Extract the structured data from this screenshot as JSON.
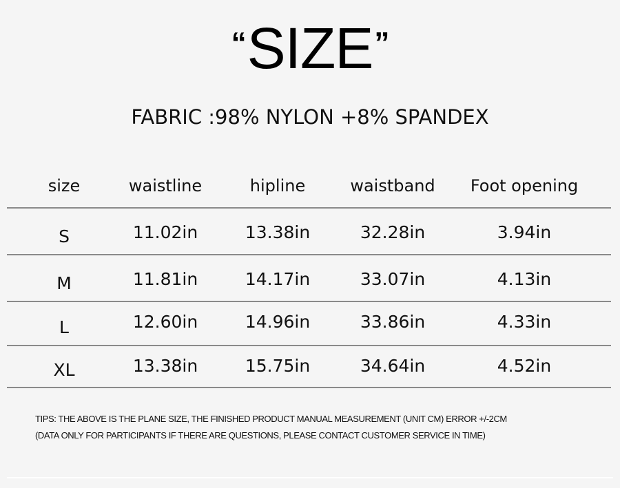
{
  "title": {
    "open_quote": "“",
    "text": "SIZE",
    "close_quote": "”"
  },
  "fabric": "FABRIC :98% NYLON +8% SPANDEX",
  "table": {
    "headers": [
      "size",
      "waistline",
      "hipline",
      "waistband",
      "Foot opening"
    ],
    "rows": [
      [
        "S",
        "11.02in",
        "13.38in",
        "32.28in",
        "3.94in"
      ],
      [
        "M",
        "11.81in",
        "14.17in",
        "33.07in",
        "4.13in"
      ],
      [
        "L",
        "12.60in",
        "14.96in",
        "33.86in",
        "4.33in"
      ],
      [
        "XL",
        "13.38in",
        "15.75in",
        "34.64in",
        "4.52in"
      ]
    ]
  },
  "tips": [
    "TIPS: THE ABOVE IS THE PLANE SIZE, THE FINISHED PRODUCT MANUAL MEASUREMENT (UNIT CM) ERROR +/-2CM",
    "(DATA ONLY FOR PARTICIPANTS IF THERE ARE QUESTIONS, PLEASE CONTACT CUSTOMER SERVICE IN TIME)"
  ]
}
